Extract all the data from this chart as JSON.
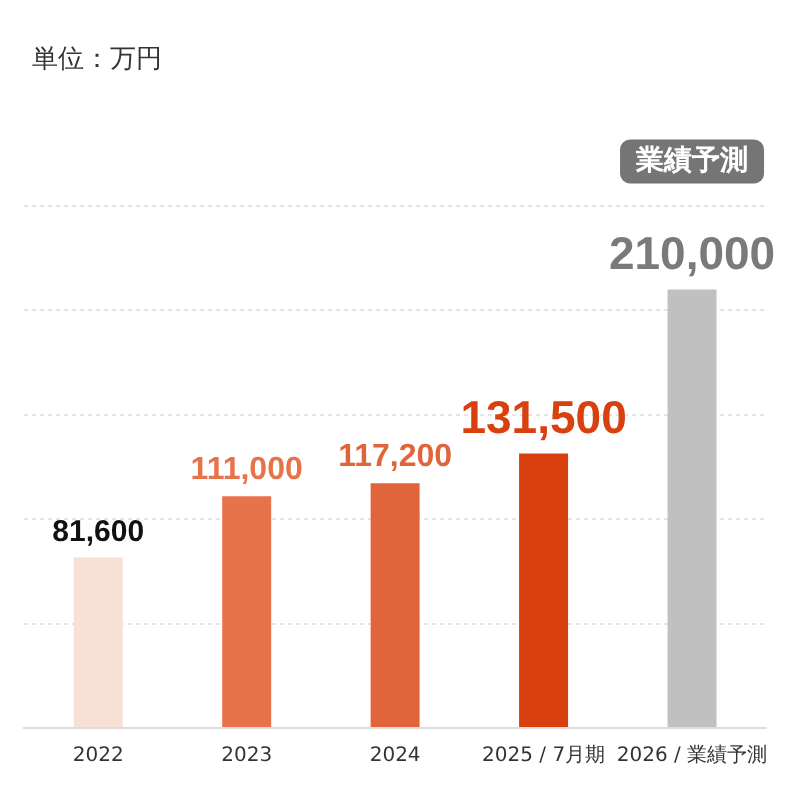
{
  "chart_data": {
    "type": "bar",
    "categories": [
      "2022",
      "2023",
      "2024",
      "2025 / 7月期",
      "2026 / 業績予測"
    ],
    "values": [
      81600,
      111000,
      117200,
      131500,
      210000
    ],
    "colors": [
      "#f9e0d6",
      "#e8734a",
      "#e0653a",
      "#d94010",
      "#c0c0c0"
    ],
    "value_labels": [
      "81,600",
      "111,000",
      "117,200",
      "131,500",
      "210,000"
    ],
    "grid": "y",
    "annotations": [
      "単位：万円",
      "業績予測"
    ]
  }
}
